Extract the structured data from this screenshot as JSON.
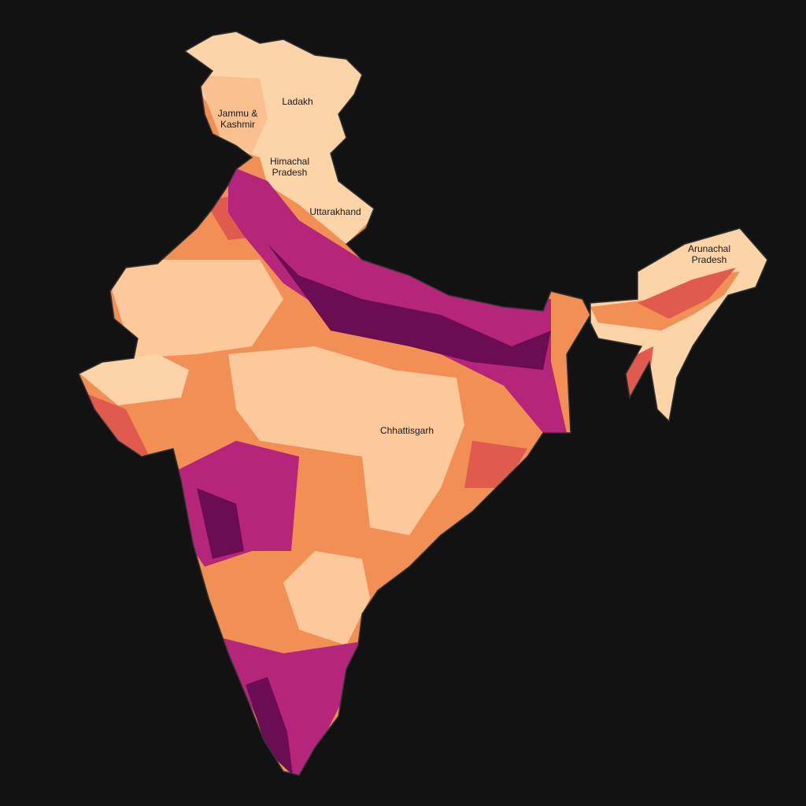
{
  "labels": [
    {
      "text": "Ladakh"
    },
    {
      "text": "Jammu & Kashmir"
    },
    {
      "text": "Himachal Pradesh"
    },
    {
      "text": "Uttarakhand"
    },
    {
      "text": "Chhattisgarh"
    },
    {
      "text": "Arunachal Pradesh"
    }
  ]
}
